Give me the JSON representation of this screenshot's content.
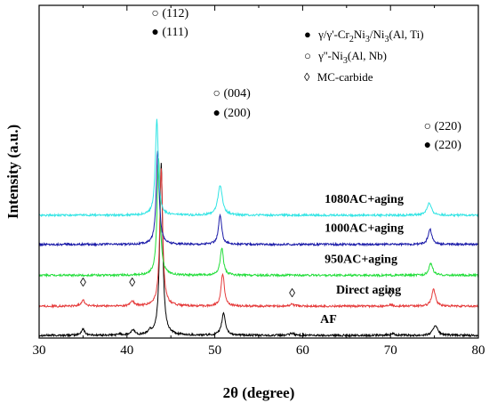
{
  "chart_data": {
    "type": "line",
    "xlabel": "2θ (degree)",
    "ylabel": "Intensity (a.u.)",
    "xlim": [
      30,
      80
    ],
    "x_ticks": [
      30,
      40,
      50,
      60,
      70,
      80
    ],
    "grid": false,
    "legend_position": "top-right",
    "legend": [
      {
        "symbol": "●",
        "text": "γ/γ'-Cr",
        "sub1": "2",
        "mid": "Ni",
        "sub2": "3",
        "tail": "/Ni",
        "sub3": "3",
        "end": "(Al, Ti)"
      },
      {
        "symbol": "○",
        "text": "γ''-Ni",
        "sub1": "3",
        "end": "(Al, Nb)"
      },
      {
        "symbol": "◊",
        "text": "MC-carbide"
      }
    ],
    "peak_annotations": [
      {
        "x": 43.6,
        "top": "○ (112)",
        "bottom": "● (111)"
      },
      {
        "x": 50.6,
        "top": "○ (004)",
        "bottom": "● (200)"
      },
      {
        "x": 74.6,
        "top": "○ (220)",
        "bottom": "● (220)"
      }
    ],
    "carbide_markers": [
      {
        "series": "Direct aging",
        "x": 35.0,
        "symbol": "◊"
      },
      {
        "series": "Direct aging",
        "x": 40.6,
        "symbol": "◊"
      },
      {
        "series": "Direct aging",
        "x": 58.8,
        "symbol": "◊"
      },
      {
        "series": "Direct aging",
        "x": 70.0,
        "symbol": "◊"
      }
    ],
    "series": [
      {
        "name": "AF",
        "color": "#000000",
        "baseline": 0,
        "label_x": 62.0,
        "peaks": [
          {
            "x": 35.0,
            "h": 0.35,
            "w": 0.25
          },
          {
            "x": 39.2,
            "h": 0.1,
            "w": 0.2
          },
          {
            "x": 40.7,
            "h": 0.3,
            "w": 0.25
          },
          {
            "x": 42.6,
            "h": 0.2,
            "w": 0.2
          },
          {
            "x": 43.9,
            "h": 10.0,
            "w": 0.2
          },
          {
            "x": 51.0,
            "h": 1.3,
            "w": 0.25
          },
          {
            "x": 58.8,
            "h": 0.12,
            "w": 0.3
          },
          {
            "x": 70.2,
            "h": 0.1,
            "w": 0.3
          },
          {
            "x": 75.1,
            "h": 0.6,
            "w": 0.3
          }
        ]
      },
      {
        "name": "Direct aging",
        "color": "#e53a3a",
        "baseline": 1.7,
        "label_x": 63.8,
        "peaks": [
          {
            "x": 35.0,
            "h": 0.35,
            "w": 0.25
          },
          {
            "x": 40.6,
            "h": 0.3,
            "w": 0.25
          },
          {
            "x": 43.9,
            "h": 8.0,
            "w": 0.2
          },
          {
            "x": 50.9,
            "h": 1.9,
            "w": 0.22
          },
          {
            "x": 58.8,
            "h": 0.1,
            "w": 0.3
          },
          {
            "x": 70.0,
            "h": 0.1,
            "w": 0.3
          },
          {
            "x": 74.9,
            "h": 1.0,
            "w": 0.25
          }
        ]
      },
      {
        "name": "950AC+aging",
        "color": "#22dd3a",
        "baseline": 3.5,
        "label_x": 62.5,
        "peaks": [
          {
            "x": 43.6,
            "h": 6.8,
            "w": 0.2
          },
          {
            "x": 50.8,
            "h": 1.6,
            "w": 0.22
          },
          {
            "x": 74.6,
            "h": 0.7,
            "w": 0.25
          }
        ]
      },
      {
        "name": "1000AC+aging",
        "color": "#1a1aa8",
        "baseline": 5.3,
        "label_x": 62.5,
        "peaks": [
          {
            "x": 43.5,
            "h": 5.5,
            "w": 0.2
          },
          {
            "x": 50.6,
            "h": 1.7,
            "w": 0.22
          },
          {
            "x": 74.5,
            "h": 0.9,
            "w": 0.25
          }
        ]
      },
      {
        "name": "1080AC+aging",
        "color": "#30e4e4",
        "baseline": 7.0,
        "label_x": 62.5,
        "peaks": [
          {
            "x": 43.4,
            "h": 5.6,
            "w": 0.2
          },
          {
            "x": 50.6,
            "h": 1.75,
            "w": 0.3
          },
          {
            "x": 74.4,
            "h": 0.7,
            "w": 0.3
          }
        ]
      }
    ]
  }
}
